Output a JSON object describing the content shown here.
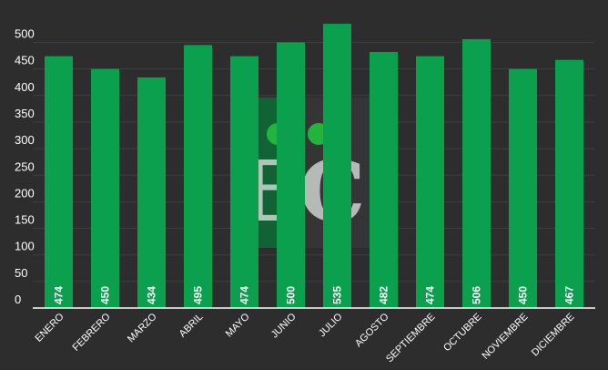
{
  "colors": {
    "background": "#2d2d2d",
    "grid": "#3e3e3e",
    "axis": "#ffffff",
    "bar": "#0aa04e",
    "label": "#ffffff",
    "watermark_dark": "#363636",
    "watermark_green": "#0b6b36",
    "watermark_dot": "#22b43c"
  },
  "watermark": {
    "text": "EC"
  },
  "chart_data": {
    "type": "bar",
    "title": "",
    "xlabel": "",
    "ylabel": "",
    "ylim": [
      0,
      550
    ],
    "yticks": [
      0,
      50,
      100,
      150,
      200,
      250,
      300,
      350,
      400,
      450,
      500
    ],
    "grid": true,
    "legend": "none",
    "categories": [
      "ENERO",
      "FEBRERO",
      "MARZO",
      "ABRIL",
      "MAYO",
      "JUNIO",
      "JULIO",
      "AGOSTO",
      "SEPTIEMBRE",
      "OCTUBRE",
      "NOVIEMBRE",
      "DICIEMBRE"
    ],
    "values": [
      474,
      450,
      434,
      495,
      474,
      500,
      535,
      482,
      474,
      506,
      450,
      467
    ],
    "data_labels": [
      "474",
      "450",
      "434",
      "495",
      "474",
      "500",
      "535",
      "482",
      "474",
      "506",
      "450",
      "467"
    ]
  }
}
